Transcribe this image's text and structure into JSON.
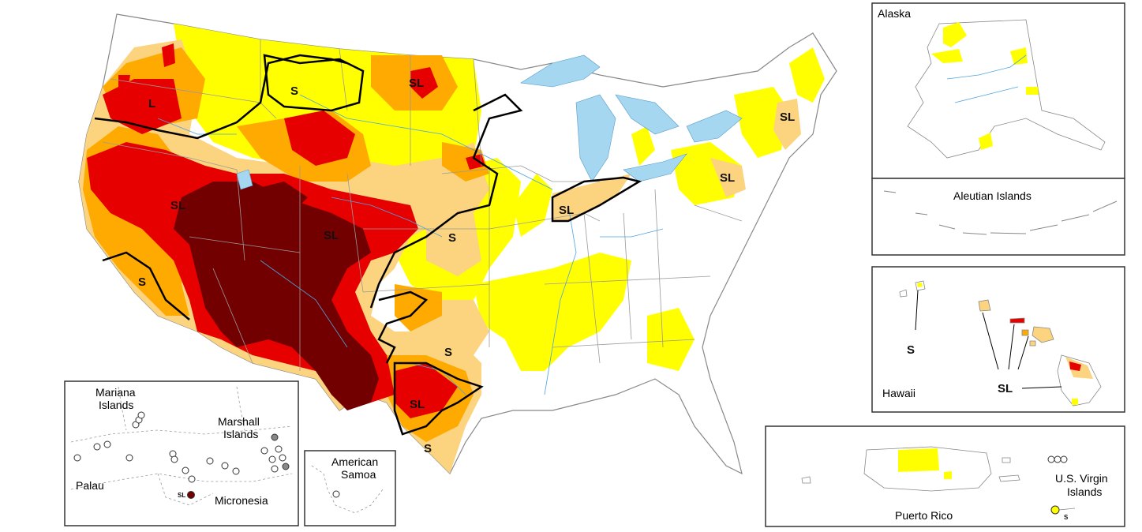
{
  "colors": {
    "d0": "#FFFF00",
    "d1": "#FCD37F",
    "d2": "#FFAA00",
    "d3": "#E60000",
    "d4": "#730000",
    "water": "#A5D8F0",
    "border": "#9a9a9a",
    "impact_line": "#000000"
  },
  "impact_labels": {
    "s": "S",
    "l": "L",
    "sl": "SL"
  },
  "insets": {
    "alaska": "Alaska",
    "aleutians": "Aleutian Islands",
    "hawaii": "Hawaii",
    "puerto_rico": "Puerto Rico",
    "usvi_line1": "U.S. Virgin",
    "usvi_line2": "Islands",
    "american_samoa_line1": "American",
    "american_samoa_line2": "Samoa",
    "mariana_line1": "Mariana",
    "mariana_line2": "Islands",
    "marshall_line1": "Marshall",
    "marshall_line2": "Islands",
    "palau": "Palau",
    "micronesia": "Micronesia"
  }
}
